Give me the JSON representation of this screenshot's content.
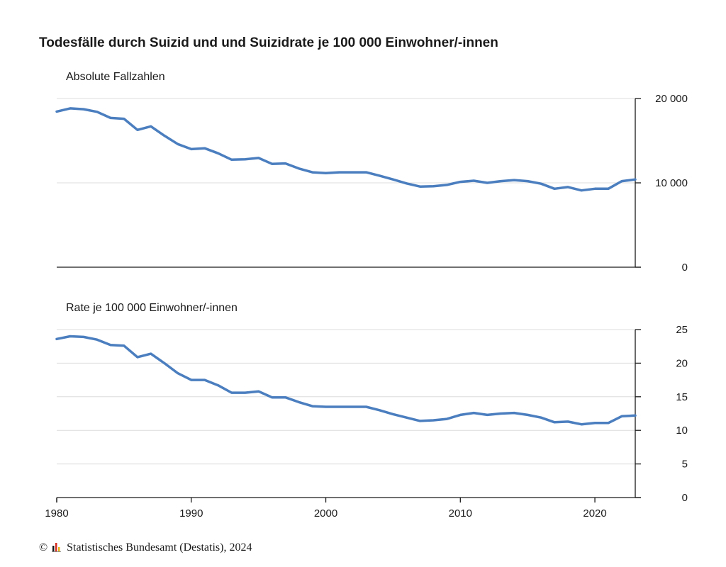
{
  "title": "Todesfälle durch Suizid und und Suizidrate je 100 000 Einwohner/-innen",
  "footer": {
    "copyright": "©",
    "text": "Statistisches Bundesamt (Destatis), 2024"
  },
  "colors": {
    "line": "#4a7ebf",
    "grid": "#dcdcdc",
    "axis": "#1a1a1a"
  },
  "chart_data": [
    {
      "type": "line",
      "subtitle": "Absolute Fallzahlen",
      "x": [
        1980,
        1981,
        1982,
        1983,
        1984,
        1985,
        1986,
        1987,
        1988,
        1989,
        1990,
        1991,
        1992,
        1993,
        1994,
        1995,
        1996,
        1997,
        1998,
        1999,
        2000,
        2001,
        2002,
        2003,
        2004,
        2005,
        2006,
        2007,
        2008,
        2009,
        2010,
        2011,
        2012,
        2013,
        2014,
        2015,
        2016,
        2017,
        2018,
        2019,
        2020,
        2021,
        2022,
        2023
      ],
      "values": [
        18450,
        18830,
        18730,
        18420,
        17700,
        17600,
        16280,
        16700,
        15600,
        14600,
        14000,
        14100,
        13500,
        12750,
        12800,
        12950,
        12250,
        12300,
        11700,
        11250,
        11150,
        11250,
        11250,
        11250,
        10850,
        10400,
        9930,
        9560,
        9600,
        9760,
        10120,
        10250,
        10000,
        10200,
        10330,
        10200,
        9900,
        9300,
        9500,
        9100,
        9300,
        9300,
        10200,
        10400
      ],
      "ylim": [
        0,
        20000
      ],
      "yticks": [
        0,
        10000,
        20000
      ],
      "yticklabels": [
        "0",
        "10 000",
        "20 000"
      ],
      "grid": true
    },
    {
      "type": "line",
      "subtitle": "Rate je 100 000 Einwohner/-innen",
      "x": [
        1980,
        1981,
        1982,
        1983,
        1984,
        1985,
        1986,
        1987,
        1988,
        1989,
        1990,
        1991,
        1992,
        1993,
        1994,
        1995,
        1996,
        1997,
        1998,
        1999,
        2000,
        2001,
        2002,
        2003,
        2004,
        2005,
        2006,
        2007,
        2008,
        2009,
        2010,
        2011,
        2012,
        2013,
        2014,
        2015,
        2016,
        2017,
        2018,
        2019,
        2020,
        2021,
        2022,
        2023
      ],
      "values": [
        23.6,
        24.0,
        23.9,
        23.5,
        22.7,
        22.6,
        20.9,
        21.4,
        20.0,
        18.5,
        17.5,
        17.5,
        16.7,
        15.6,
        15.6,
        15.8,
        14.9,
        14.9,
        14.2,
        13.6,
        13.5,
        13.5,
        13.5,
        13.5,
        13.0,
        12.4,
        11.9,
        11.4,
        11.5,
        11.7,
        12.3,
        12.6,
        12.3,
        12.5,
        12.6,
        12.3,
        11.9,
        11.2,
        11.3,
        10.9,
        11.1,
        11.1,
        12.1,
        12.2
      ],
      "ylim": [
        0,
        25
      ],
      "yticks": [
        0,
        5,
        10,
        15,
        20,
        25
      ],
      "yticklabels": [
        "0",
        "5",
        "10",
        "15",
        "20",
        "25"
      ],
      "grid": true,
      "xticks": [
        1980,
        1990,
        2000,
        2010,
        2020
      ],
      "xticklabels": [
        "1980",
        "1990",
        "2000",
        "2010",
        "2020"
      ]
    }
  ]
}
